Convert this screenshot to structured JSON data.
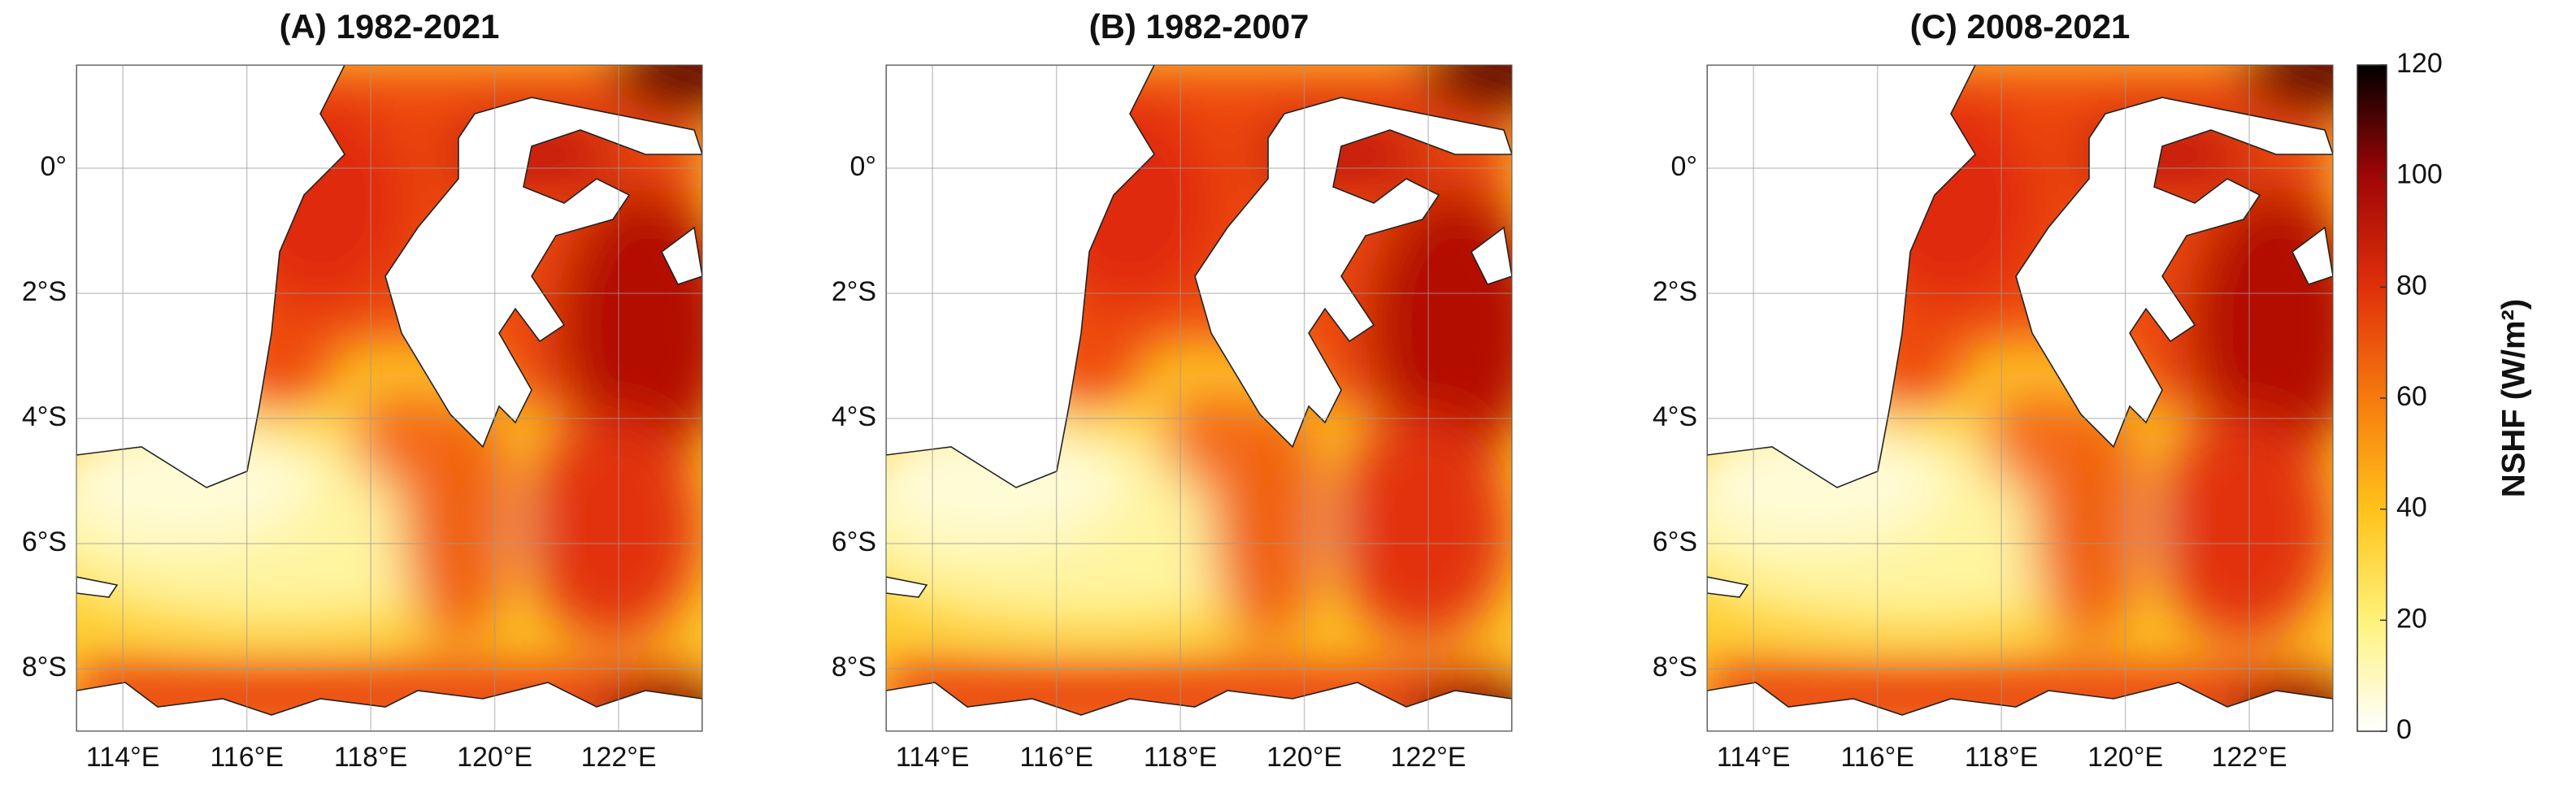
{
  "chart_data": [
    {
      "type": "map",
      "title": "(A) 1982-2021",
      "xlim": [
        113.25,
        123.35
      ],
      "ylim": [
        -9,
        1.65
      ],
      "xticks": [
        {
          "value": 114,
          "label": "114°E"
        },
        {
          "value": 116,
          "label": "116°E"
        },
        {
          "value": 118,
          "label": "118°E"
        },
        {
          "value": 120,
          "label": "120°E"
        },
        {
          "value": 122,
          "label": "122°E"
        }
      ],
      "yticks": [
        {
          "value": 0,
          "label": "0°"
        },
        {
          "value": -2,
          "label": "2°S"
        },
        {
          "value": -4,
          "label": "4°S"
        },
        {
          "value": -6,
          "label": "6°S"
        },
        {
          "value": -8,
          "label": "8°S"
        }
      ],
      "grid": true
    },
    {
      "type": "map",
      "title": "(B) 1982-2007",
      "xlim": [
        113.25,
        123.35
      ],
      "ylim": [
        -9,
        1.65
      ],
      "xticks": [
        {
          "value": 114,
          "label": "114°E"
        },
        {
          "value": 116,
          "label": "116°E"
        },
        {
          "value": 118,
          "label": "118°E"
        },
        {
          "value": 120,
          "label": "120°E"
        },
        {
          "value": 122,
          "label": "122°E"
        }
      ],
      "yticks": [
        {
          "value": 0,
          "label": "0°"
        },
        {
          "value": -2,
          "label": "2°S"
        },
        {
          "value": -4,
          "label": "4°S"
        },
        {
          "value": -6,
          "label": "6°S"
        },
        {
          "value": -8,
          "label": "8°S"
        }
      ],
      "grid": true
    },
    {
      "type": "map",
      "title": "(C) 2008-2021",
      "xlim": [
        113.25,
        123.35
      ],
      "ylim": [
        -9,
        1.65
      ],
      "xticks": [
        {
          "value": 114,
          "label": "114°E"
        },
        {
          "value": 116,
          "label": "116°E"
        },
        {
          "value": 118,
          "label": "118°E"
        },
        {
          "value": 120,
          "label": "120°E"
        },
        {
          "value": 122,
          "label": "122°E"
        }
      ],
      "yticks": [
        {
          "value": 0,
          "label": "0°"
        },
        {
          "value": -2,
          "label": "2°S"
        },
        {
          "value": -4,
          "label": "4°S"
        },
        {
          "value": -6,
          "label": "6°S"
        },
        {
          "value": -8,
          "label": "8°S"
        }
      ],
      "grid": true
    }
  ],
  "colorbar": {
    "label": "NSHF (W/m²)",
    "lim": [
      0,
      120
    ],
    "ticks": [
      0,
      20,
      40,
      60,
      80,
      100,
      120
    ],
    "colormap": [
      "#ffffff",
      "#fff27a",
      "#ffc21a",
      "#f67a0e",
      "#e0300a",
      "#a00606",
      "#000000"
    ]
  }
}
